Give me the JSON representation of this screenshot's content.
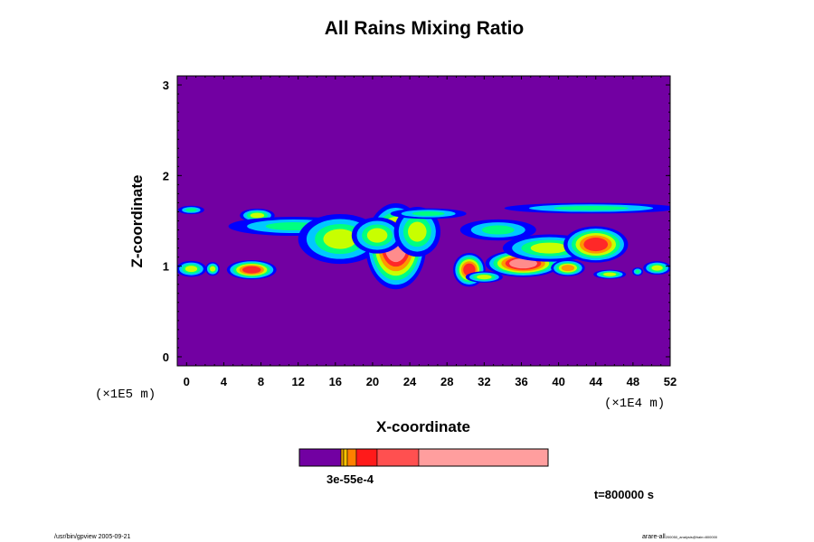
{
  "chart_data": {
    "type": "heatmap",
    "title": "All Rains Mixing Ratio",
    "xlabel": "X-coordinate",
    "ylabel": "Z-coordinate",
    "x_ticks": [
      0,
      4,
      8,
      12,
      16,
      20,
      24,
      28,
      32,
      36,
      40,
      44,
      48,
      52
    ],
    "y_ticks": [
      0,
      1,
      2,
      3
    ],
    "x_tick_labels": [
      "0",
      "4",
      "8",
      "12",
      "16",
      "20",
      "24",
      "28",
      "32",
      "36",
      "40",
      "44",
      "48",
      "52"
    ],
    "y_tick_labels": [
      "0",
      "1",
      "2",
      "3"
    ],
    "xlim": [
      -1,
      52
    ],
    "ylim": [
      -0.1,
      3.1
    ],
    "x_unit_label": "(×1E4  m)",
    "y_unit_label": "(×1E5  m)",
    "colorbar": {
      "colors": [
        "#7200a2",
        "#e6a000",
        "#ffc400",
        "#ff8000",
        "#ff1a1a",
        "#ff5050",
        "#ff9e9e"
      ],
      "label": "3e-55e-4"
    },
    "time_label": "t=800000 s",
    "colors": {
      "background": "#7200a2",
      "levels": [
        "#0000ff",
        "#00c8ff",
        "#00ff80",
        "#c8ff00",
        "#ff9600",
        "#ff2828",
        "#ff8c8c"
      ]
    },
    "rain_cells": [
      {
        "x": 0.5,
        "z": 1.62,
        "rx": 1.2,
        "rz": 0.04,
        "peak": 2
      },
      {
        "x": 0.5,
        "z": 0.97,
        "rx": 1.3,
        "rz": 0.07,
        "peak": 3
      },
      {
        "x": 2.8,
        "z": 0.97,
        "rx": 0.6,
        "rz": 0.06,
        "peak": 3
      },
      {
        "x": 7.0,
        "z": 0.96,
        "rx": 2.0,
        "rz": 0.08,
        "peak": 5
      },
      {
        "x": 7.6,
        "z": 1.56,
        "rx": 1.5,
        "rz": 0.06,
        "peak": 3
      },
      {
        "x": 11.5,
        "z": 1.44,
        "rx": 6.0,
        "rz": 0.09,
        "peak": 2
      },
      {
        "x": 16.5,
        "z": 1.3,
        "rx": 3.6,
        "rz": 0.22,
        "peak": 3
      },
      {
        "x": 22.5,
        "z": 1.22,
        "rx": 2.4,
        "rz": 0.35,
        "peak": 6
      },
      {
        "x": 20.5,
        "z": 1.34,
        "rx": 2.2,
        "rz": 0.16,
        "peak": 3
      },
      {
        "x": 24.8,
        "z": 1.38,
        "rx": 2.0,
        "rz": 0.22,
        "peak": 3
      },
      {
        "x": 26.0,
        "z": 1.58,
        "rx": 3.5,
        "rz": 0.05,
        "peak": 2
      },
      {
        "x": 30.4,
        "z": 0.96,
        "rx": 1.3,
        "rz": 0.14,
        "peak": 5
      },
      {
        "x": 32.0,
        "z": 0.88,
        "rx": 1.6,
        "rz": 0.05,
        "peak": 3
      },
      {
        "x": 33.5,
        "z": 1.4,
        "rx": 3.5,
        "rz": 0.1,
        "peak": 2
      },
      {
        "x": 36.2,
        "z": 1.03,
        "rx": 3.0,
        "rz": 0.11,
        "peak": 6
      },
      {
        "x": 39.0,
        "z": 1.2,
        "rx": 4.0,
        "rz": 0.12,
        "peak": 3
      },
      {
        "x": 44.0,
        "z": 1.24,
        "rx": 2.6,
        "rz": 0.15,
        "peak": 5
      },
      {
        "x": 41.0,
        "z": 0.98,
        "rx": 1.4,
        "rz": 0.07,
        "peak": 4
      },
      {
        "x": 45.5,
        "z": 0.91,
        "rx": 1.4,
        "rz": 0.04,
        "peak": 3
      },
      {
        "x": 48.5,
        "z": 0.94,
        "rx": 0.5,
        "rz": 0.04,
        "peak": 2
      },
      {
        "x": 50.6,
        "z": 0.98,
        "rx": 1.2,
        "rz": 0.06,
        "peak": 3
      },
      {
        "x": 43.5,
        "z": 1.64,
        "rx": 8.0,
        "rz": 0.05,
        "peak": 2
      }
    ]
  },
  "footer": {
    "left": "/usr/bin/gpview 2005-09-21",
    "right": "arare-all",
    "right_sub": "200050_analysis@hain=800000"
  }
}
